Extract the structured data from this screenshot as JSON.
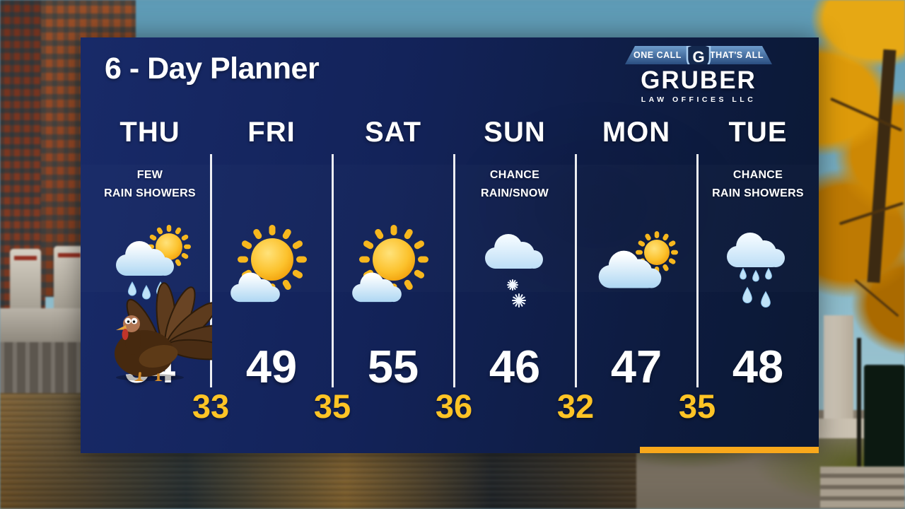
{
  "title": "6 - Day Planner",
  "logo": {
    "banner_left": "ONE CALL",
    "banner_right": "THAT'S ALL",
    "shield_letter": "G",
    "company": "GRUBER",
    "subtitle": "LAW OFFICES LLC"
  },
  "days": [
    {
      "label": "THU",
      "condition": [
        "FEW",
        "RAIN SHOWERS"
      ],
      "icon": "sun-cloud-rain-icon",
      "high": "54",
      "mascot": "turkey-graphic"
    },
    {
      "label": "FRI",
      "condition": [],
      "icon": "mostly-sunny-icon",
      "high": "49"
    },
    {
      "label": "SAT",
      "condition": [],
      "icon": "mostly-sunny-icon",
      "high": "55"
    },
    {
      "label": "SUN",
      "condition": [
        "CHANCE",
        "RAIN/SNOW"
      ],
      "icon": "cloud-snow-icon",
      "high": "46"
    },
    {
      "label": "MON",
      "condition": [],
      "icon": "sun-behind-cloud-icon",
      "high": "47"
    },
    {
      "label": "TUE",
      "condition": [
        "CHANCE",
        "RAIN SHOWERS"
      ],
      "icon": "cloud-rain-icon",
      "high": "48"
    }
  ],
  "lows": [
    "33",
    "35",
    "36",
    "32",
    "35"
  ],
  "colors": {
    "panel_navy": "#13235a",
    "high_temp_white": "#ffffff",
    "low_temp_yellow": "#ffc425",
    "accent_bar_orange": "#f9a81b"
  }
}
